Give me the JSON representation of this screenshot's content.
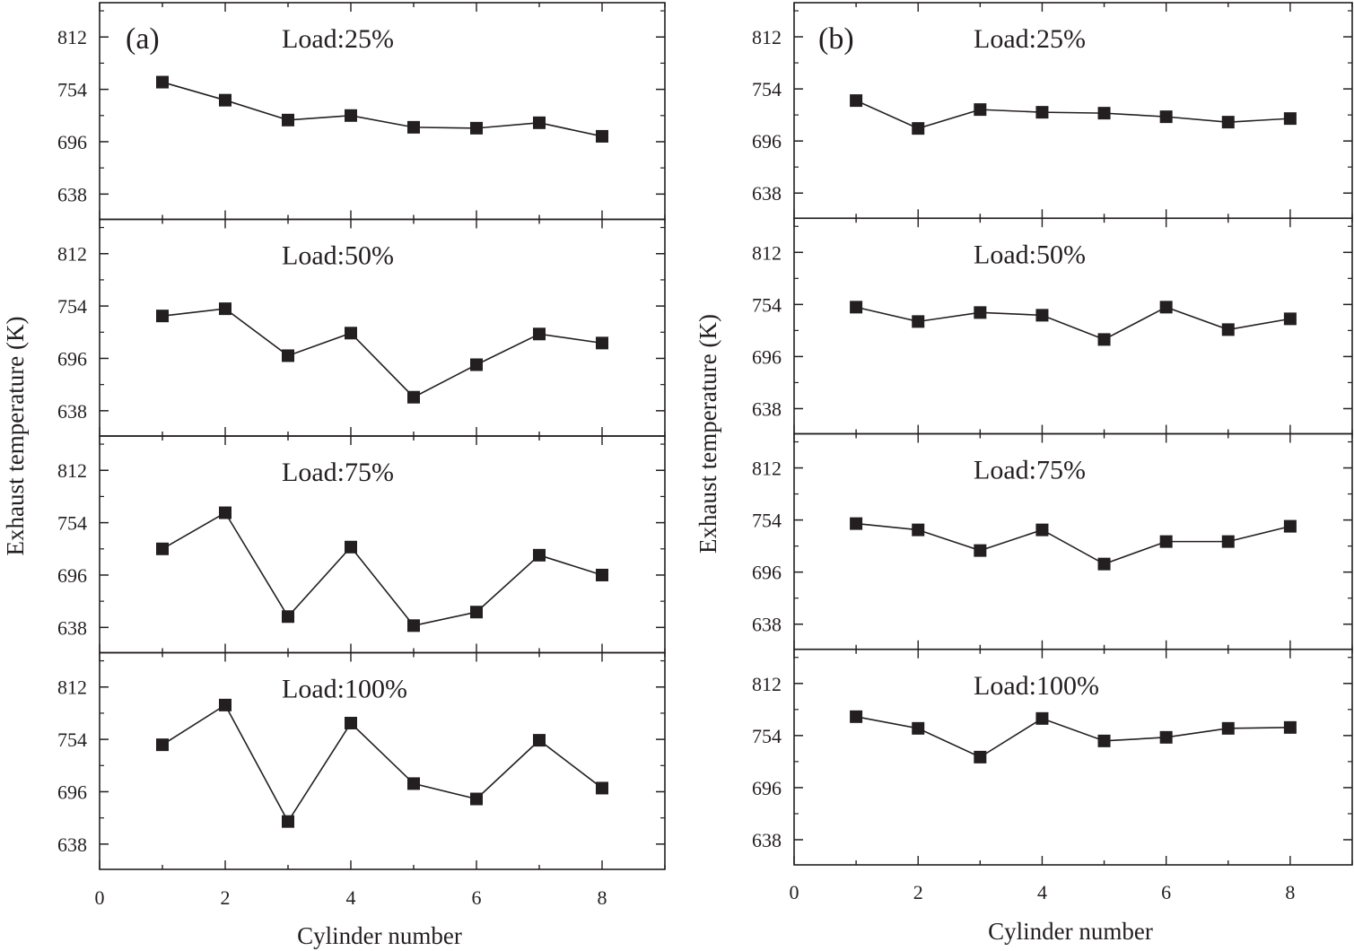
{
  "chart_data": [
    {
      "type": "line",
      "panel_label": "(a)",
      "xlabel": "Cylinder number",
      "ylabel": "Exhaust temperature (K)",
      "xlim": [
        0,
        9
      ],
      "xticks": [
        0,
        2,
        4,
        6,
        8
      ],
      "ylim": [
        610,
        850
      ],
      "yticks": [
        638,
        696,
        754,
        812
      ],
      "marker": "square",
      "series": [
        {
          "name": "Load:25%",
          "x": [
            1,
            2,
            3,
            4,
            5,
            6,
            7,
            8
          ],
          "values": [
            762,
            742,
            720,
            725,
            712,
            711,
            717,
            702
          ]
        },
        {
          "name": "Load:50%",
          "x": [
            1,
            2,
            3,
            4,
            5,
            6,
            7,
            8
          ],
          "values": [
            743,
            751,
            699,
            724,
            653,
            689,
            723,
            713
          ]
        },
        {
          "name": "Load:75%",
          "x": [
            1,
            2,
            3,
            4,
            5,
            6,
            7,
            8
          ],
          "values": [
            725,
            765,
            650,
            727,
            640,
            655,
            718,
            696
          ]
        },
        {
          "name": "Load:100%",
          "x": [
            1,
            2,
            3,
            4,
            5,
            6,
            7,
            8
          ],
          "values": [
            748,
            792,
            663,
            772,
            705,
            688,
            753,
            700
          ]
        }
      ]
    },
    {
      "type": "line",
      "panel_label": "(b)",
      "xlabel": "Cylinder number",
      "ylabel": "Exhaust temperature (K)",
      "xlim": [
        0,
        9
      ],
      "xticks": [
        0,
        2,
        4,
        6,
        8
      ],
      "ylim": [
        610,
        850
      ],
      "yticks": [
        638,
        696,
        754,
        812
      ],
      "marker": "square",
      "series": [
        {
          "name": "Load:25%",
          "x": [
            1,
            2,
            3,
            4,
            5,
            6,
            7,
            8
          ],
          "values": [
            741,
            710,
            731,
            728,
            727,
            723,
            717,
            721
          ]
        },
        {
          "name": "Load:50%",
          "x": [
            1,
            2,
            3,
            4,
            5,
            6,
            7,
            8
          ],
          "values": [
            751,
            735,
            745,
            742,
            715,
            751,
            726,
            738
          ]
        },
        {
          "name": "Load:75%",
          "x": [
            1,
            2,
            3,
            4,
            5,
            6,
            7,
            8
          ],
          "values": [
            750,
            743,
            720,
            743,
            705,
            730,
            730,
            747
          ]
        },
        {
          "name": "Load:100%",
          "x": [
            1,
            2,
            3,
            4,
            5,
            6,
            7,
            8
          ],
          "values": [
            775,
            762,
            730,
            773,
            748,
            752,
            762,
            763
          ]
        }
      ]
    }
  ]
}
